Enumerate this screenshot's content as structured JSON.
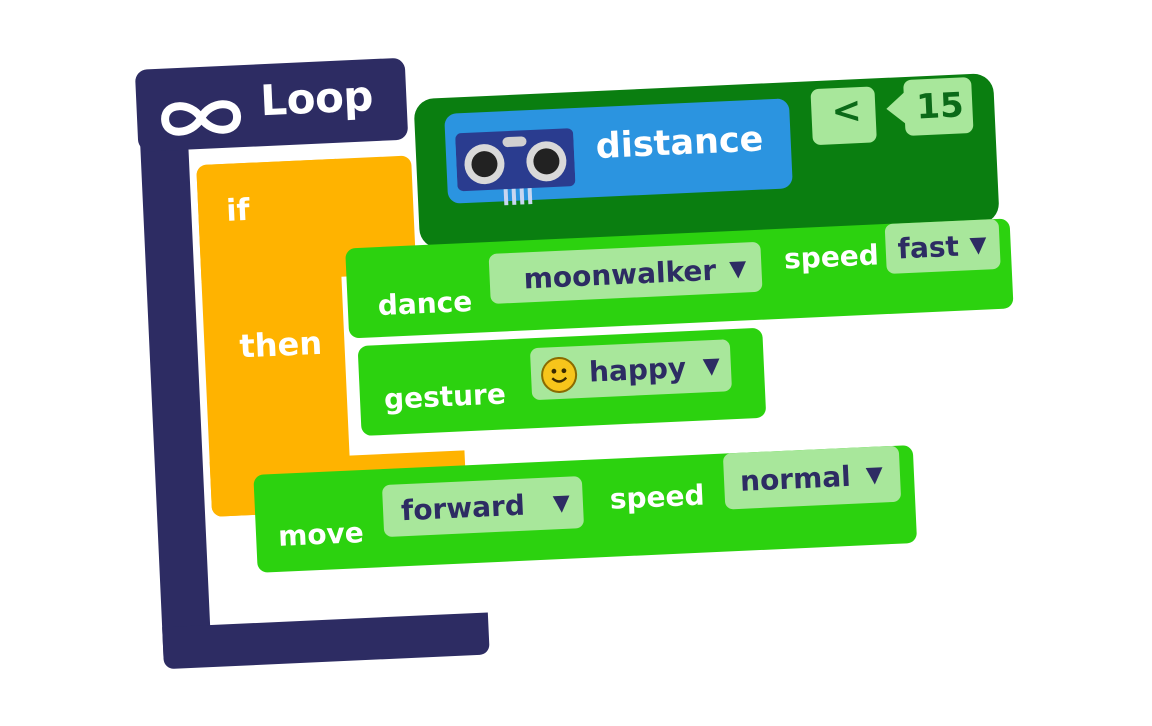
{
  "loop": {
    "label": "Loop",
    "icon": "infinity-icon"
  },
  "if_block": {
    "if_label": "if",
    "then_label": "then"
  },
  "condition": {
    "sensor": {
      "label": "distance",
      "icon": "ultrasonic-sensor-icon"
    },
    "operator": "<",
    "value": "15"
  },
  "commands": {
    "dance": {
      "label": "dance",
      "move": "moonwalker",
      "speed_label": "speed",
      "speed": "fast"
    },
    "gesture": {
      "label": "gesture",
      "value": "happy",
      "icon": "smiley-icon"
    },
    "move": {
      "label": "move",
      "direction": "forward",
      "speed_label": "speed",
      "speed": "normal"
    }
  },
  "colors": {
    "loop": "#2d2c63",
    "if": "#ffb300",
    "condition": "#0a7e10",
    "sensor": "#2b94e0",
    "command": "#2cd20f",
    "chip": "#a8e79b"
  }
}
